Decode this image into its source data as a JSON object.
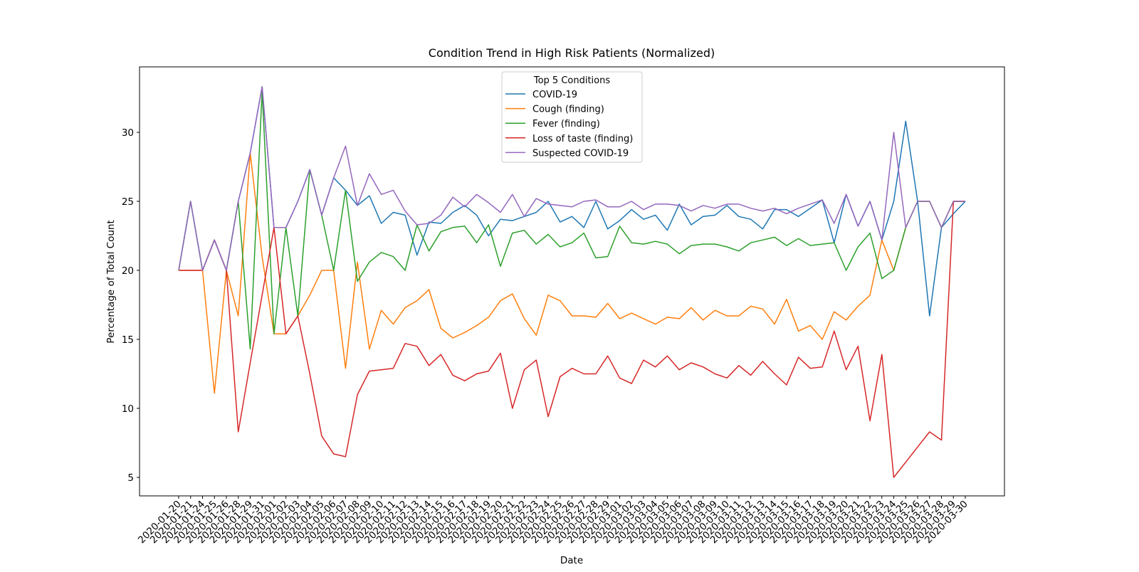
{
  "chart_data": {
    "type": "line",
    "title": "Condition Trend in High Risk Patients (Normalized)",
    "x_label": "Date",
    "y_label": "Percentage of Total Count",
    "legend_title": "Top 5 Conditions",
    "legend_loc": "upper center",
    "categories": [
      "2020-01-20",
      "2020-01-21",
      "2020-01-24",
      "2020-01-25",
      "2020-01-26",
      "2020-01-28",
      "2020-01-29",
      "2020-01-31",
      "2020-02-01",
      "2020-02-02",
      "2020-02-03",
      "2020-02-04",
      "2020-02-05",
      "2020-02-06",
      "2020-02-07",
      "2020-02-08",
      "2020-02-09",
      "2020-02-10",
      "2020-02-11",
      "2020-02-12",
      "2020-02-13",
      "2020-02-14",
      "2020-02-15",
      "2020-02-16",
      "2020-02-17",
      "2020-02-18",
      "2020-02-19",
      "2020-02-20",
      "2020-02-21",
      "2020-02-22",
      "2020-02-23",
      "2020-02-24",
      "2020-02-25",
      "2020-02-26",
      "2020-02-27",
      "2020-02-28",
      "2020-02-29",
      "2020-03-01",
      "2020-03-02",
      "2020-03-03",
      "2020-03-04",
      "2020-03-05",
      "2020-03-06",
      "2020-03-07",
      "2020-03-08",
      "2020-03-09",
      "2020-03-10",
      "2020-03-11",
      "2020-03-12",
      "2020-03-13",
      "2020-03-14",
      "2020-03-15",
      "2020-03-16",
      "2020-03-17",
      "2020-03-18",
      "2020-03-19",
      "2020-03-20",
      "2020-03-21",
      "2020-03-22",
      "2020-03-23",
      "2020-03-24",
      "2020-03-25",
      "2020-03-26",
      "2020-03-27",
      "2020-03-28",
      "2020-03-29",
      "2020-03-30"
    ],
    "series": [
      {
        "name": "COVID-19",
        "color": "#1f77b4",
        "values": [
          20,
          25,
          20,
          22.2,
          20,
          25,
          28.5,
          33.3,
          23.1,
          23.1,
          25,
          27.3,
          24,
          26.7,
          25.8,
          24.7,
          25.4,
          23.4,
          24.2,
          24.0,
          21.1,
          23.5,
          23.4,
          24.2,
          24.7,
          24.0,
          22.5,
          23.7,
          23.6,
          23.9,
          24.2,
          25.0,
          23.5,
          23.9,
          23.1,
          25.0,
          23.0,
          23.6,
          24.4,
          23.7,
          24.0,
          22.9,
          24.8,
          23.3,
          23.9,
          24.0,
          24.7,
          23.9,
          23.7,
          23.0,
          24.4,
          24.4,
          23.9,
          24.5,
          25.1,
          22.0,
          25.5,
          23.2,
          25.0,
          22.2,
          25.0,
          30.8,
          25.0,
          16.7,
          23.1,
          24.1,
          25.0
        ]
      },
      {
        "name": "Cough (finding)",
        "color": "#ff7f0e",
        "values": [
          20,
          20,
          20,
          11.1,
          20,
          16.7,
          28.5,
          21.0,
          15.4,
          15.4,
          16.7,
          18.2,
          20.0,
          20.0,
          12.9,
          20.6,
          14.3,
          17.1,
          16.1,
          17.3,
          17.8,
          18.6,
          15.8,
          15.1,
          15.5,
          16.0,
          16.6,
          17.8,
          18.3,
          16.5,
          15.3,
          18.2,
          17.8,
          16.7,
          16.7,
          16.6,
          17.6,
          16.5,
          16.9,
          16.5,
          16.1,
          16.6,
          16.5,
          17.3,
          16.4,
          17.1,
          16.7,
          16.7,
          17.4,
          17.2,
          16.1,
          17.9,
          15.6,
          16.0,
          15.0,
          17.0,
          16.4,
          17.4,
          18.2,
          22.2,
          20.0,
          23.1,
          25.0,
          25.0,
          23.1,
          25.0,
          25.0
        ]
      },
      {
        "name": "Fever (finding)",
        "color": "#2ca02c",
        "values": [
          20,
          25,
          20,
          22.2,
          20,
          25,
          14.3,
          33.0,
          15.4,
          23.1,
          16.7,
          27.3,
          24.0,
          20.0,
          25.8,
          19.2,
          20.6,
          21.3,
          21.0,
          20.0,
          23.3,
          21.4,
          22.8,
          23.1,
          23.2,
          22.0,
          23.3,
          20.3,
          22.7,
          22.9,
          21.9,
          22.6,
          21.7,
          22.0,
          22.7,
          20.9,
          21.0,
          23.2,
          22.0,
          21.9,
          22.1,
          21.9,
          21.2,
          21.8,
          21.9,
          21.9,
          21.7,
          21.4,
          22.0,
          22.2,
          22.4,
          21.8,
          22.3,
          21.8,
          21.9,
          22.0,
          20.0,
          21.7,
          22.7,
          19.4,
          20.0,
          23.1,
          25.0,
          25.0,
          23.1,
          25.0,
          25.0
        ]
      },
      {
        "name": "Loss of taste (finding)",
        "color": "#d62728",
        "values": [
          20,
          20,
          20,
          22.2,
          20,
          8.3,
          13.3,
          18.2,
          23.1,
          15.4,
          16.7,
          12.5,
          8.0,
          6.7,
          6.5,
          11.0,
          12.7,
          12.8,
          12.9,
          14.7,
          14.5,
          13.1,
          13.9,
          12.4,
          12.0,
          12.5,
          12.7,
          14.0,
          10.0,
          12.8,
          13.5,
          9.4,
          12.3,
          12.9,
          12.5,
          12.5,
          13.8,
          12.2,
          11.8,
          13.5,
          13.0,
          13.8,
          12.8,
          13.3,
          13.0,
          12.5,
          12.2,
          13.1,
          12.4,
          13.4,
          12.5,
          11.7,
          13.7,
          12.9,
          13.0,
          15.6,
          12.8,
          14.5,
          9.1,
          13.9,
          5.0,
          6.1,
          7.2,
          8.3,
          7.7,
          25.0,
          25.0
        ]
      },
      {
        "name": "Suspected COVID-19",
        "color": "#9467bd",
        "values": [
          20,
          25,
          20,
          22.2,
          20,
          25,
          28.5,
          33.3,
          23.1,
          23.1,
          25,
          27.3,
          24,
          26.7,
          29.0,
          24.7,
          27.0,
          25.5,
          25.8,
          24.3,
          23.3,
          23.4,
          24.0,
          25.3,
          24.6,
          25.5,
          24.9,
          24.2,
          25.5,
          23.9,
          25.2,
          24.8,
          24.7,
          24.6,
          25.0,
          25.1,
          24.6,
          24.6,
          25.0,
          24.4,
          24.8,
          24.8,
          24.7,
          24.3,
          24.7,
          24.5,
          24.8,
          24.8,
          24.5,
          24.3,
          24.5,
          24.1,
          24.5,
          24.8,
          25.1,
          23.4,
          25.5,
          23.2,
          25.0,
          22.2,
          30.0,
          23.1,
          25.0,
          25.0,
          23.1,
          25.0,
          25.0
        ]
      }
    ],
    "ylim": [
      3.66,
      34.74
    ],
    "yticks": [
      5,
      10,
      15,
      20,
      25,
      30
    ]
  }
}
